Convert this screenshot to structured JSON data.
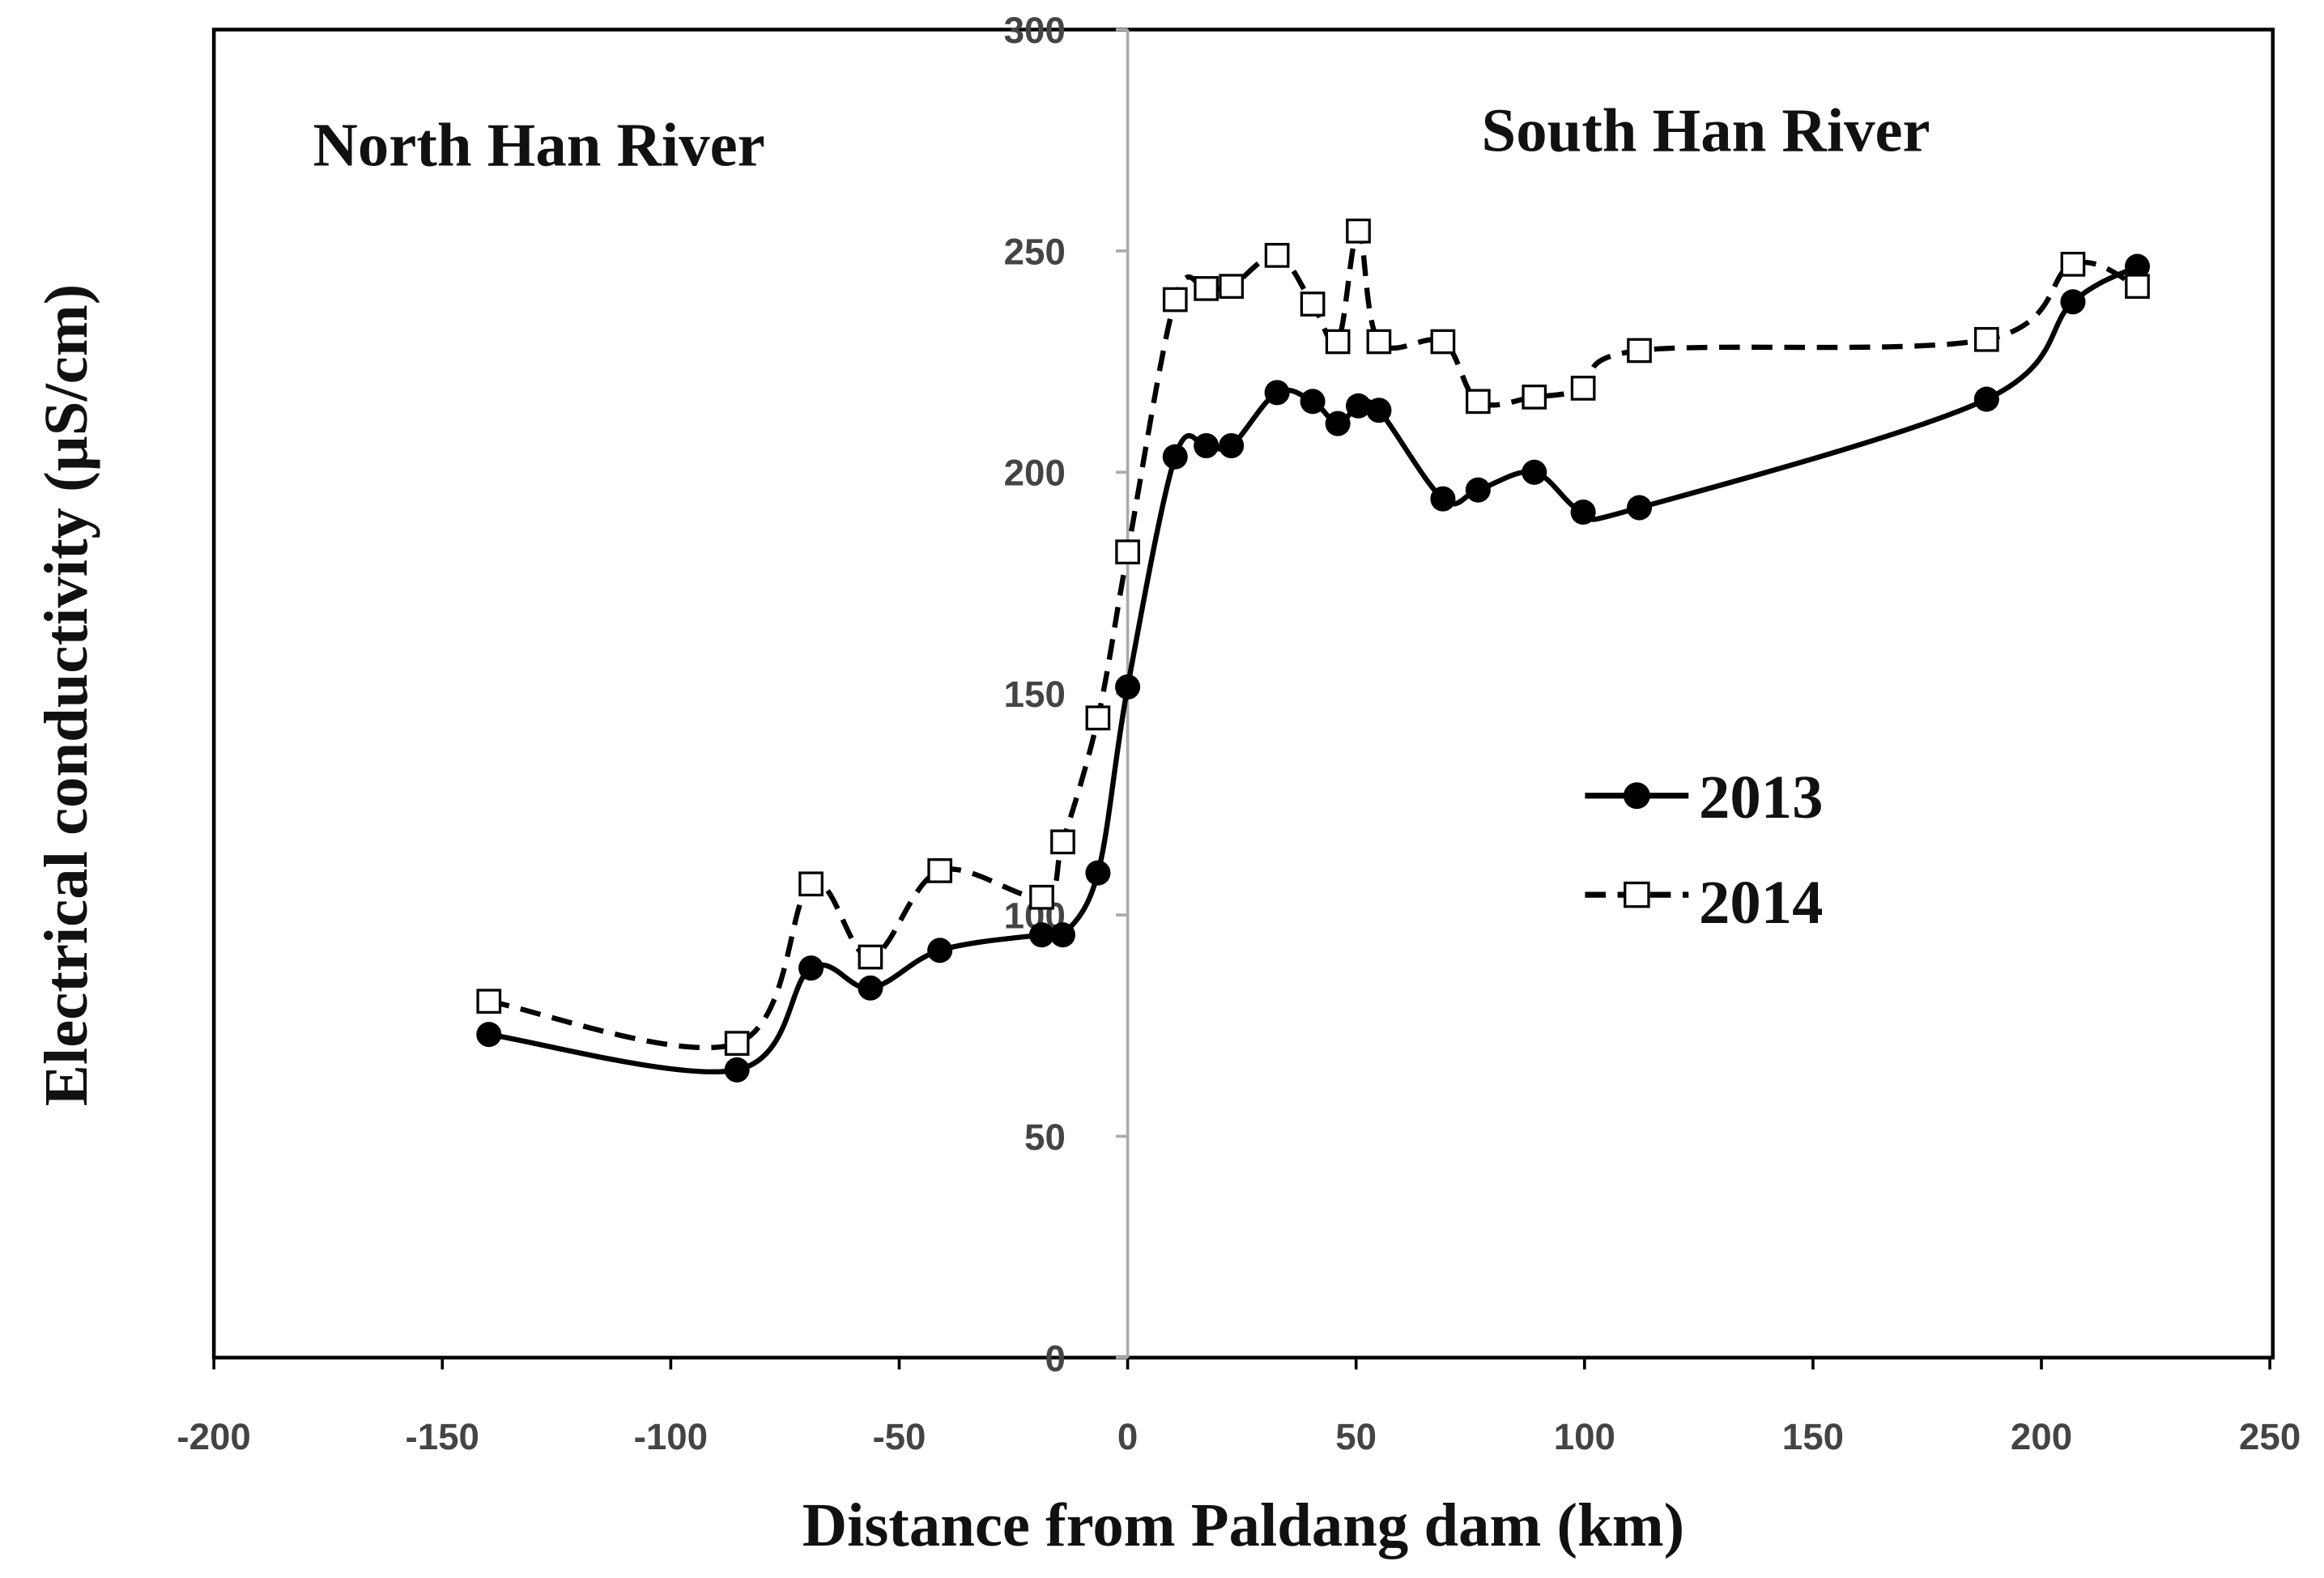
{
  "chart_data": {
    "type": "line",
    "title": "",
    "xlabel": "Distance from Paldang dam (km)",
    "ylabel": "Electrical conductivity (µS/cm)",
    "xlim": [
      -200,
      250
    ],
    "ylim": [
      0,
      300
    ],
    "xticks": [
      -200,
      -150,
      -100,
      -50,
      0,
      50,
      100,
      150,
      200,
      250
    ],
    "yticks": [
      0,
      50,
      100,
      150,
      200,
      250,
      300
    ],
    "grid": false,
    "legend": "center-right",
    "annotations": [
      "North Han River",
      "South Han River"
    ],
    "series": [
      {
        "name": "2013",
        "marker": "filled-circle",
        "line": "solid",
        "x": [
          -139.8,
          -85.5,
          -69.3,
          -56.3,
          -41.1,
          -18.8,
          -14.2,
          -6.5,
          0,
          10.4,
          17.2,
          22.7,
          32.7,
          40.5,
          46,
          50.5,
          55,
          69,
          76.7,
          89,
          99.7,
          112,
          188,
          206.9,
          221
        ],
        "y": [
          73,
          65,
          88,
          83.5,
          92,
          95.5,
          95.5,
          109.5,
          151.5,
          203.5,
          206,
          206,
          218,
          216,
          211,
          215,
          214,
          194,
          196,
          200,
          191,
          192,
          216.5,
          238.5,
          246.5
        ]
      },
      {
        "name": "2014",
        "marker": "open-square",
        "line": "dashed",
        "x": [
          -139.8,
          -85.5,
          -69.3,
          -56.3,
          -41.1,
          -18.8,
          -14.2,
          -6.5,
          0,
          10.4,
          17.2,
          22.7,
          32.7,
          40.5,
          46,
          50.5,
          55,
          69,
          76.7,
          89,
          99.7,
          112,
          188,
          206.9,
          221
        ],
        "y": [
          80.5,
          71,
          107,
          90.5,
          110,
          104,
          116.5,
          144.5,
          182,
          239,
          241.5,
          242,
          249,
          238,
          229.5,
          254.5,
          229.5,
          229.5,
          216,
          217,
          219,
          227.5,
          230,
          247,
          242
        ]
      }
    ]
  }
}
